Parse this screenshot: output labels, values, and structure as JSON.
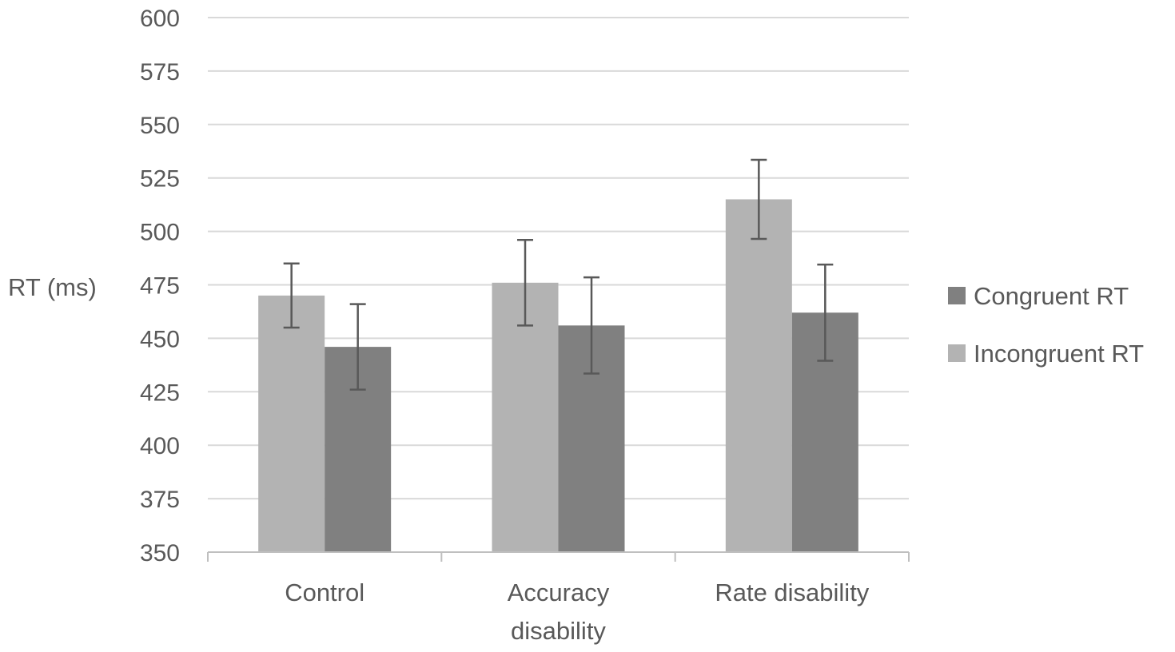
{
  "chart_data": {
    "type": "bar",
    "title": "",
    "xlabel": "",
    "ylabel": "RT (ms)",
    "ylim": [
      350,
      600
    ],
    "yticks": [
      350,
      375,
      400,
      425,
      450,
      475,
      500,
      525,
      550,
      575,
      600
    ],
    "grid": true,
    "legend_position": "right",
    "categories": [
      [
        "Control"
      ],
      [
        "Accuracy",
        "disability"
      ],
      [
        "Rate disability"
      ]
    ],
    "series": [
      {
        "name": "Incongruent RT",
        "color": "#b3b3b3",
        "values": [
          470,
          476,
          515
        ],
        "error": [
          15,
          20,
          18.5
        ]
      },
      {
        "name": "Congruent RT",
        "color": "#808080",
        "values": [
          446,
          456,
          462
        ],
        "error": [
          20,
          22.5,
          22.5
        ]
      }
    ],
    "legend_order": [
      "Congruent RT",
      "Incongruent RT"
    ]
  }
}
